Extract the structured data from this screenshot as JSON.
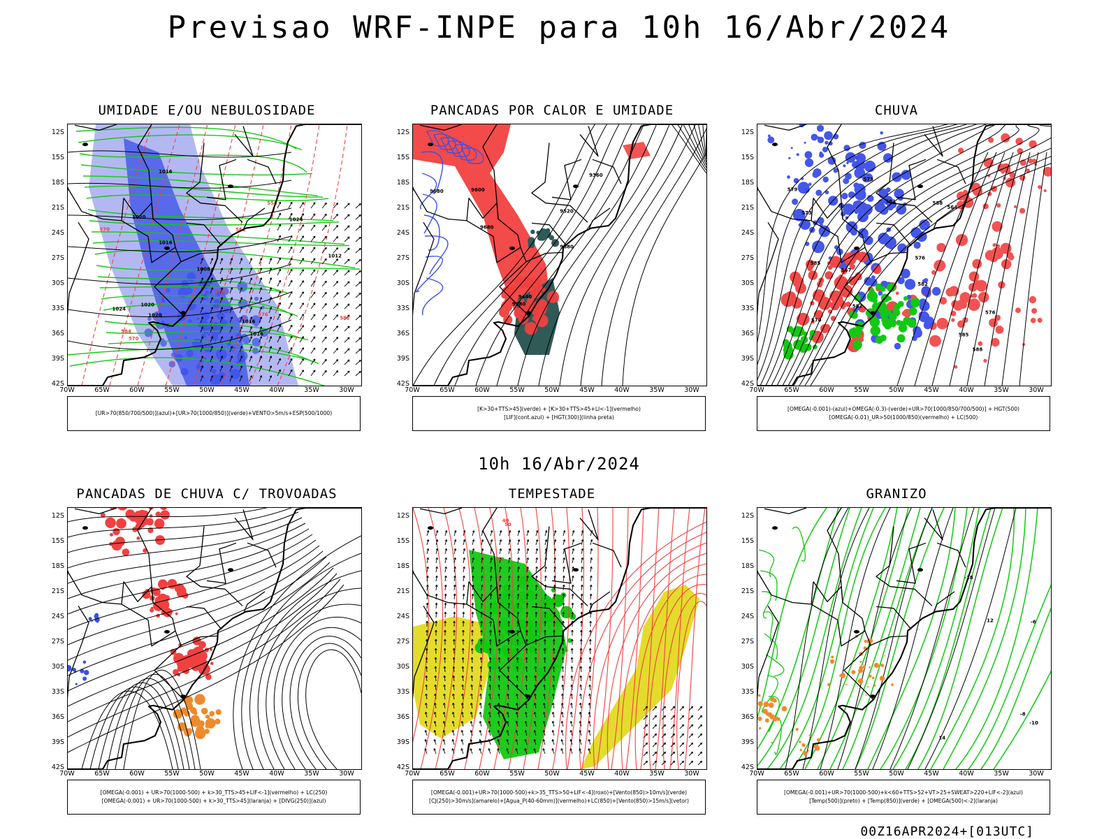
{
  "title": "Previsao WRF-INPE  para 10h 16/Abr/2024",
  "mid_title": "10h 16/Abr/2024",
  "footer": "00Z16APR2024+[013UTC]",
  "axes": {
    "lat_labels": [
      "12S",
      "15S",
      "18S",
      "21S",
      "24S",
      "27S",
      "30S",
      "33S",
      "36S",
      "39S",
      "42S"
    ],
    "lon_labels": [
      "70W",
      "65W",
      "60W",
      "55W",
      "50W",
      "45W",
      "40W",
      "35W",
      "30W"
    ]
  },
  "colors": {
    "blue": "#3a4fe8",
    "light_blue": "#9aa0ee",
    "green": "#12c812",
    "red": "#f24040",
    "orange": "#ef8a2a",
    "yellow": "#e4dc2c",
    "dark_teal": "#2f5a58",
    "black": "#000000"
  },
  "panels": [
    {
      "id": "umidade",
      "title": "UMIDADE E/OU NEBULOSIDADE",
      "legend": [
        "[UR>70(850/700/500)](azul)+[UR>70(1000/850)](verde)+VENTO>5m/s+ESP(500/1000)"
      ],
      "contour_labels": [
        "1016",
        "1016",
        "1020",
        "1020",
        "1024",
        "1016",
        "1012",
        "1016",
        "1008",
        "1020",
        "1024",
        "576",
        "570",
        "564",
        "558",
        "552",
        "570",
        "576",
        "582"
      ]
    },
    {
      "id": "pancadas-calor",
      "title": "PANCADAS POR CALOR E UMIDADE",
      "legend": [
        "[K>30+TTS>45](verde) + [K>30+TTS>45+LI<-1](vermelho)",
        "[LIF](cont.azul) + [HGT(300)](linha preta)"
      ],
      "contour_labels": [
        "9680",
        "9600",
        "9520",
        "9440",
        "9360",
        "9280",
        "9680",
        "9680"
      ]
    },
    {
      "id": "chuva",
      "title": "CHUVA",
      "legend": [
        "[OMEGA(-0.001)-(azul)+OMEGA(-0.3)-(verde)+UR>70(1000/850/700/500)] + HGT(500)",
        "[OMEGA(-0.01)_UR>50(1000/850)(vermelho) + LC(500)"
      ],
      "contour_labels": [
        "588",
        "585",
        "582",
        "579",
        "576",
        "573",
        "570",
        "567",
        "564",
        "561",
        "588",
        "585",
        "582",
        "573",
        "576"
      ]
    },
    {
      "id": "trovoadas",
      "title": "PANCADAS DE CHUVA C/ TROVOADAS",
      "legend": [
        "[OMEGA(-0.001) + UR>70(1000-500) + k>30_TTS>45+LIF<-1](vermelho) + LC(250)",
        "[OMEGA(-0.001) + UR>70(1000-500) + k>30_TTS>45](laranja) + [DIVG(250)](azul)"
      ],
      "contour_labels": []
    },
    {
      "id": "tempestade",
      "title": "TEMPESTADE",
      "legend": [
        "[OMEGA(-0.001)+UR>70(1000-500)+k>35_TTS>50+LIF<-4](roxo)+[Vento(850)>10m/s](verde)",
        "[CJ(250)>30m/s](amarelo)+[Agua_P(40-60mm)](vermelho)+LC(850)+[Vento(850)>15m/s](vetor)"
      ],
      "contour_labels": [
        "50",
        "40",
        "50"
      ]
    },
    {
      "id": "granizo",
      "title": "GRANIZO",
      "legend": [
        "[OMEGA(-0.001)+UR>70(1000-500)+k<60+TTS>52+VT>25+SWEAT>220+LIF<-2](azul)",
        "[Temp(500)](preto) + [Temp(850)](verde) + [OMEGA(500)<-2](laranja)"
      ],
      "contour_labels": [
        "-8",
        "-6",
        "-10",
        "12",
        "14",
        "-18"
      ]
    }
  ]
}
